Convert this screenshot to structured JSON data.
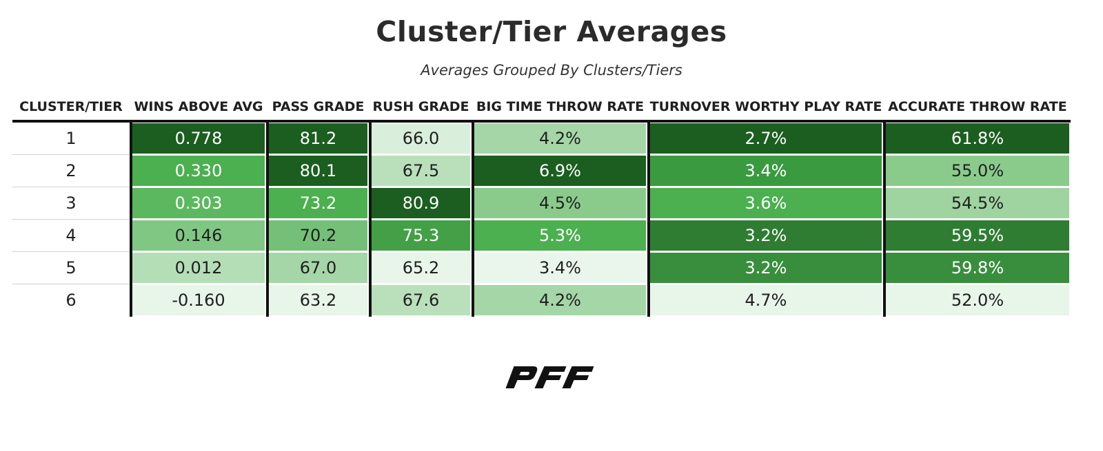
{
  "title": "Cluster/Tier Averages",
  "subtitle": "Averages Grouped By Clusters/Tiers",
  "logo_text": "PFF",
  "colors": {
    "darkest": "#1b5e20",
    "dark": "#2e7d32",
    "mid_dark": "#388e3c",
    "mid": "#4caf50",
    "mid_light": "#5cb85f",
    "light": "#81c784",
    "lighter": "#a5d6a7",
    "pale": "#c8e6c9",
    "palest": "#e8f5e9"
  },
  "chart_data": {
    "type": "table",
    "title": "Cluster/Tier Averages",
    "subtitle": "Averages Grouped By Clusters/Tiers",
    "columns": [
      "CLUSTER/TIER",
      "WINS ABOVE AVG",
      "PASS GRADE",
      "RUSH GRADE",
      "BIG TIME THROW RATE",
      "TURNOVER WORTHY PLAY RATE",
      "ACCURATE THROW RATE"
    ],
    "rows": [
      {
        "tier": "1",
        "values": [
          "0.778",
          "81.2",
          "66.0",
          "4.2%",
          "2.7%",
          "61.8%"
        ],
        "colors": [
          "#1b5e20",
          "#1b5e20",
          "#d9efdb",
          "#a5d6a7",
          "#1b5e20",
          "#1b5e20"
        ]
      },
      {
        "tier": "2",
        "values": [
          "0.330",
          "80.1",
          "67.5",
          "6.9%",
          "3.4%",
          "55.0%"
        ],
        "colors": [
          "#4caf50",
          "#1b5e20",
          "#b9e0bb",
          "#1b5e20",
          "#3a9a3f",
          "#8acb8c"
        ]
      },
      {
        "tier": "3",
        "values": [
          "0.303",
          "73.2",
          "80.9",
          "4.5%",
          "3.6%",
          "54.5%"
        ],
        "colors": [
          "#5cb85f",
          "#4caf50",
          "#1b5e20",
          "#8acb8c",
          "#4caf50",
          "#9fd4a1"
        ]
      },
      {
        "tier": "4",
        "values": [
          "0.146",
          "70.2",
          "75.3",
          "5.3%",
          "3.2%",
          "59.5%"
        ],
        "colors": [
          "#81c784",
          "#74c078",
          "#43a047",
          "#4caf50",
          "#2e7d32",
          "#2e7d32"
        ]
      },
      {
        "tier": "5",
        "values": [
          "0.012",
          "67.0",
          "65.2",
          "3.4%",
          "3.2%",
          "59.8%"
        ],
        "colors": [
          "#b4deb6",
          "#a5d6a7",
          "#e8f5e9",
          "#eaf6eb",
          "#388e3c",
          "#388e3c"
        ]
      },
      {
        "tier": "6",
        "values": [
          "-0.160",
          "63.2",
          "67.6",
          "4.2%",
          "4.7%",
          "52.0%"
        ],
        "colors": [
          "#e8f5e9",
          "#e8f5e9",
          "#b9e0bb",
          "#a5d6a7",
          "#e8f5e9",
          "#e8f5e9"
        ]
      }
    ]
  }
}
